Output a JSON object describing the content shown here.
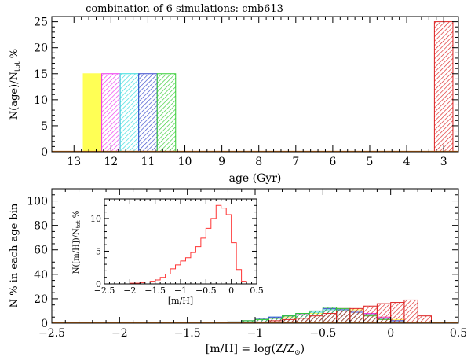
{
  "figure_title": "combination of 6 simulations: cmb613",
  "chart_data": [
    {
      "type": "bar",
      "title": "combination of 6 simulations: cmb613",
      "xlabel": "age (Gyr)",
      "ylabel": "N(age)/N_tot %",
      "ylabel_parts": {
        "main": "N(age)/N",
        "sub": "tot",
        "suffix": " %"
      },
      "x_reversed": true,
      "xlim": [
        13.6,
        2.6
      ],
      "ylim": [
        0,
        26
      ],
      "x_ticks": [
        "13",
        "12",
        "11",
        "10",
        "9",
        "8",
        "7",
        "6",
        "5",
        "4",
        "3"
      ],
      "y_ticks": [
        "0",
        "5",
        "10",
        "15",
        "20",
        "25"
      ],
      "bars": [
        {
          "from": 12.75,
          "to": 12.25,
          "value": 15,
          "color": "#ffff55",
          "pattern": "solid"
        },
        {
          "from": 12.25,
          "to": 11.75,
          "value": 15,
          "color": "#ee33ee",
          "pattern": "hatch"
        },
        {
          "from": 11.75,
          "to": 11.25,
          "value": 15,
          "color": "#33dddd",
          "pattern": "hatch"
        },
        {
          "from": 11.25,
          "to": 10.75,
          "value": 15,
          "color": "#3344cc",
          "pattern": "hatch"
        },
        {
          "from": 10.75,
          "to": 10.25,
          "value": 15,
          "color": "#33cc33",
          "pattern": "hatch"
        },
        {
          "from": 3.25,
          "to": 2.75,
          "value": 25,
          "color": "#dd2222",
          "pattern": "hatch"
        }
      ],
      "baseline_color": "#e07a1a"
    },
    {
      "type": "bar",
      "title": "",
      "xlabel": "[m/H] = log(Z/Z⊙)",
      "xlabel_parts": {
        "main": "[m/H] = log(Z/Z",
        "sub": "⊙",
        "suffix": ")"
      },
      "ylabel": "N % in each age bin",
      "xlim": [
        -2.5,
        0.5
      ],
      "ylim": [
        0,
        110
      ],
      "x_ticks": [
        "−2.5",
        "−2",
        "−1.5",
        "−1",
        "−0.5",
        "0",
        "0.5"
      ],
      "x_tick_values": [
        -2.5,
        -2,
        -1.5,
        -1,
        -0.5,
        0,
        0.5
      ],
      "y_ticks": [
        "0",
        "20",
        "40",
        "60",
        "80",
        "100"
      ],
      "bin_width": 0.1,
      "series": [
        {
          "name": "12.5 Gyr",
          "color": "#ffff55",
          "bins": [
            -1.2,
            -1.1,
            -1.0,
            -0.9,
            -0.8,
            -0.7,
            -0.6,
            -0.5,
            -0.4,
            -0.3,
            -0.2,
            -0.1,
            0.0
          ],
          "values": [
            1,
            2,
            3,
            4,
            5,
            7,
            8,
            10,
            12,
            11,
            8,
            5,
            3
          ]
        },
        {
          "name": "12 Gyr",
          "color": "#ee33ee",
          "bins": [
            -1.2,
            -1.1,
            -1.0,
            -0.9,
            -0.8,
            -0.7,
            -0.6,
            -0.5,
            -0.4,
            -0.3,
            -0.2,
            -0.1,
            0.0
          ],
          "values": [
            1,
            2,
            3,
            4,
            6,
            7,
            9,
            11,
            12,
            10,
            8,
            5,
            2
          ]
        },
        {
          "name": "11.5 Gyr",
          "color": "#33dddd",
          "bins": [
            -1.2,
            -1.1,
            -1.0,
            -0.9,
            -0.8,
            -0.7,
            -0.6,
            -0.5,
            -0.4,
            -0.3,
            -0.2,
            -0.1,
            0.0
          ],
          "values": [
            1,
            2,
            3,
            5,
            6,
            8,
            9,
            11,
            11,
            10,
            7,
            4,
            2
          ]
        },
        {
          "name": "11 Gyr",
          "color": "#3344cc",
          "bins": [
            -1.2,
            -1.1,
            -1.0,
            -0.9,
            -0.8,
            -0.7,
            -0.6,
            -0.5,
            -0.4,
            -0.3,
            -0.2,
            -0.1,
            0.0
          ],
          "values": [
            1,
            2,
            4,
            5,
            6,
            8,
            10,
            12,
            11,
            9,
            7,
            4,
            2
          ]
        },
        {
          "name": "10.5 Gyr",
          "color": "#33cc33",
          "bins": [
            -1.2,
            -1.1,
            -1.0,
            -0.9,
            -0.8,
            -0.7,
            -0.6,
            -0.5,
            -0.4,
            -0.3,
            -0.2,
            -0.1,
            0.0
          ],
          "values": [
            1,
            2,
            3,
            4,
            6,
            8,
            10,
            13,
            12,
            10,
            6,
            3,
            1
          ]
        },
        {
          "name": "3 Gyr",
          "color": "#dd2222",
          "bins": [
            -1.0,
            -0.9,
            -0.8,
            -0.7,
            -0.6,
            -0.5,
            -0.4,
            -0.3,
            -0.2,
            -0.1,
            0.0,
            0.1,
            0.2
          ],
          "values": [
            1,
            2,
            3,
            4,
            6,
            8,
            10,
            12,
            14,
            16,
            17,
            19,
            6
          ]
        }
      ],
      "baseline_color": "#e07a1a"
    },
    {
      "type": "bar",
      "title": "",
      "xlabel": "[m/H]",
      "ylabel": "N([m/H])/N_tot %",
      "ylabel_parts": {
        "main": "N([m/H])/N",
        "sub": "tot",
        "suffix": " %"
      },
      "xlim": [
        -2.5,
        0.5
      ],
      "ylim": [
        0,
        13
      ],
      "x_ticks": [
        "−2.5",
        "−2",
        "−1.5",
        "−1",
        "−0.5",
        "0",
        "0.5"
      ],
      "x_tick_values": [
        -2.5,
        -2,
        -1.5,
        -1,
        -0.5,
        0,
        0.5
      ],
      "y_ticks": [
        "0",
        "5",
        "10"
      ],
      "color": "#ff3333",
      "bin_edges": [
        -2.0,
        -1.9,
        -1.8,
        -1.7,
        -1.6,
        -1.5,
        -1.4,
        -1.3,
        -1.2,
        -1.1,
        -1.0,
        -0.9,
        -0.8,
        -0.7,
        -0.6,
        -0.5,
        -0.4,
        -0.3,
        -0.2,
        -0.1,
        0.0,
        0.1,
        0.2,
        0.3
      ],
      "values": [
        0.1,
        0.1,
        0.2,
        0.3,
        0.4,
        0.6,
        1.0,
        1.5,
        2.3,
        2.9,
        3.5,
        4.0,
        4.8,
        5.7,
        7.0,
        8.5,
        10.0,
        12.0,
        11.6,
        10.6,
        6.3,
        2.2,
        0.4
      ]
    }
  ]
}
